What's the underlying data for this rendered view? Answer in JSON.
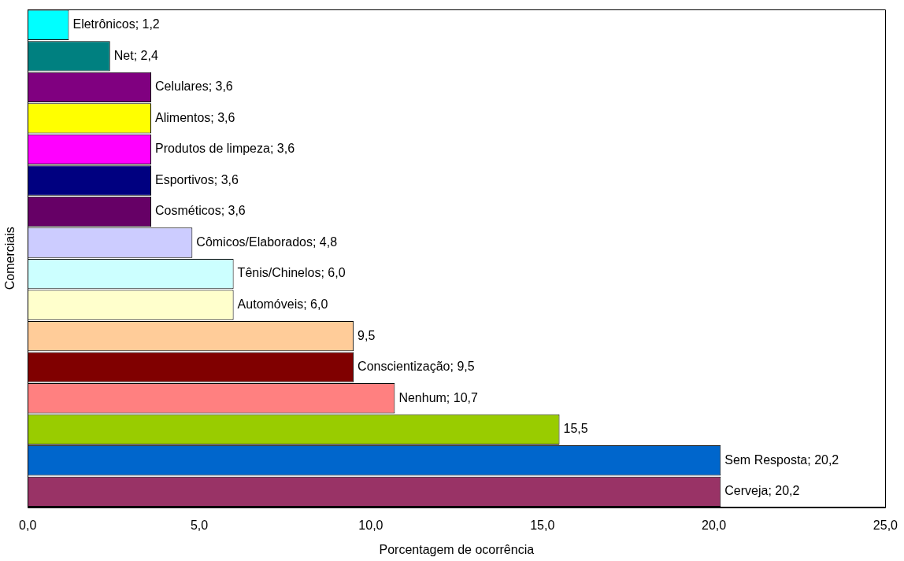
{
  "chart_data": {
    "type": "bar",
    "orientation": "horizontal",
    "xlabel": "Porcentagem de ocorrência",
    "ylabel": "Comerciais",
    "categories": [
      null,
      null,
      null,
      null,
      null,
      null,
      null,
      null,
      null,
      null,
      null,
      null,
      null,
      null,
      null,
      null
    ],
    "values": [
      1.2,
      2.4,
      3.6,
      3.6,
      3.6,
      3.6,
      3.6,
      4.8,
      6.0,
      6.0,
      9.5,
      9.5,
      10.7,
      15.5,
      20.2,
      20.2
    ],
    "colors": [
      "#00ffff",
      "#008080",
      "#800080",
      "#ffff00",
      "#ff00ff",
      "#000080",
      "#660066",
      "#ccccff",
      "#ccffff",
      "#ffffcc",
      "#ffcc99",
      "#800000",
      "#ff8080",
      "#99cc00",
      "#0066cc",
      "#993366"
    ],
    "value_labels": [
      "Eletrônicos; 1,2",
      "Net; 2,4",
      "Celulares; 3,6",
      "Alimentos; 3,6",
      "Produtos de limpeza; 3,6",
      "Esportivos; 3,6",
      "Cosméticos; 3,6",
      "Cômicos/Elaborados; 4,8",
      "Tênis/Chinelos; 6,0",
      "Automóveis; 6,0",
      "9,5",
      "Conscientização; 9,5",
      "Nenhum; 10,7",
      "15,5",
      "Sem Resposta; 20,2",
      "Cerveja; 20,2"
    ],
    "xlim": [
      0,
      25
    ],
    "xticks": [
      {
        "value": 0,
        "label": "0,0"
      },
      {
        "value": 5,
        "label": "5,0"
      },
      {
        "value": 10,
        "label": "10,0"
      },
      {
        "value": 15,
        "label": "15,0"
      },
      {
        "value": 20,
        "label": "20,0"
      },
      {
        "value": 25,
        "label": "25,0"
      }
    ],
    "tick_labels": "x",
    "grid": false,
    "legend": false
  }
}
